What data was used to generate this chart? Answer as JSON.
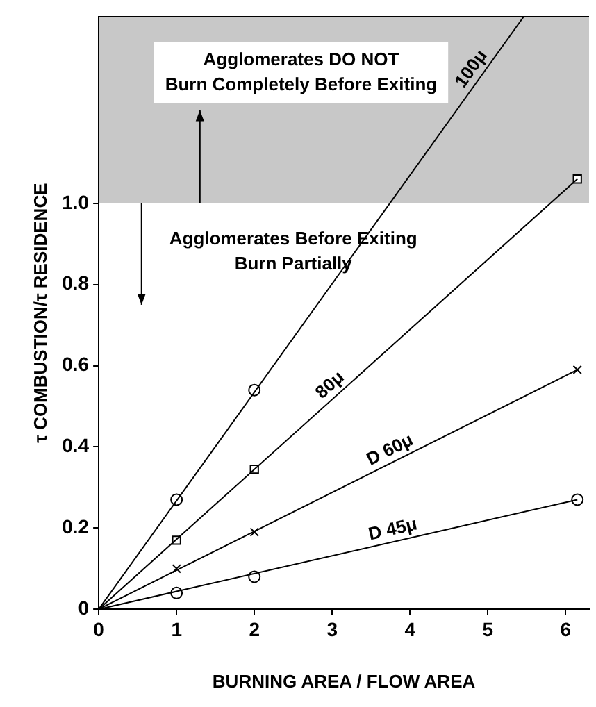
{
  "chart_data": {
    "type": "scatter",
    "xlabel": "BURNING AREA / FLOW AREA",
    "ylabel": "τ COMBUSTION/τ RESIDENCE",
    "xlim": [
      0,
      6.3
    ],
    "ylim": [
      0,
      1.46
    ],
    "xticks": [
      0,
      1,
      2,
      3,
      4,
      5,
      6
    ],
    "yticks": [
      0,
      0.2,
      0.4,
      0.6,
      0.8,
      {
        "value": 1,
        "label": "1.0"
      }
    ],
    "grid": false,
    "legend": false,
    "series": [
      {
        "type": "line",
        "name": "100μ",
        "color": "#000000",
        "x": [
          0,
          5.46
        ],
        "values": [
          0,
          1.46
        ],
        "marker": "none"
      },
      {
        "type": "line",
        "name": "80μ",
        "color": "#000000",
        "x": [
          0,
          6.15
        ],
        "values": [
          0,
          1.06
        ],
        "marker": "none"
      },
      {
        "type": "line",
        "name": "D 60μ",
        "color": "#000000",
        "x": [
          0,
          6.15
        ],
        "values": [
          0,
          0.59
        ],
        "marker": "none"
      },
      {
        "type": "line",
        "name": "D 45μ",
        "color": "#000000",
        "x": [
          0,
          6.15
        ],
        "values": [
          0,
          0.27
        ],
        "marker": "none"
      },
      {
        "type": "scatter",
        "color": "#000000",
        "x": [
          1,
          2
        ],
        "values": [
          0.27,
          0.54
        ],
        "marker": "circle"
      },
      {
        "type": "scatter",
        "color": "#000000",
        "x": [
          1,
          2,
          6.15
        ],
        "values": [
          0.17,
          0.345,
          1.06
        ],
        "marker": "square"
      },
      {
        "type": "scatter",
        "color": "#000000",
        "x": [
          1,
          2,
          6.15
        ],
        "values": [
          0.1,
          0.19,
          0.59
        ],
        "marker": "cross"
      },
      {
        "type": "scatter",
        "color": "#000000",
        "x": [
          1,
          2,
          6.15
        ],
        "values": [
          0.04,
          0.08,
          0.27
        ],
        "marker": "circle"
      }
    ],
    "bands": [
      {
        "axis": "y",
        "from": 1,
        "to": 1.46,
        "label": "Agglomerates DO NOT\nBurn Completely Before Exiting",
        "color": "#c8c8c8"
      }
    ],
    "annotations": [
      "Agglomerates Before Exiting\nBurn Partially"
    ]
  }
}
